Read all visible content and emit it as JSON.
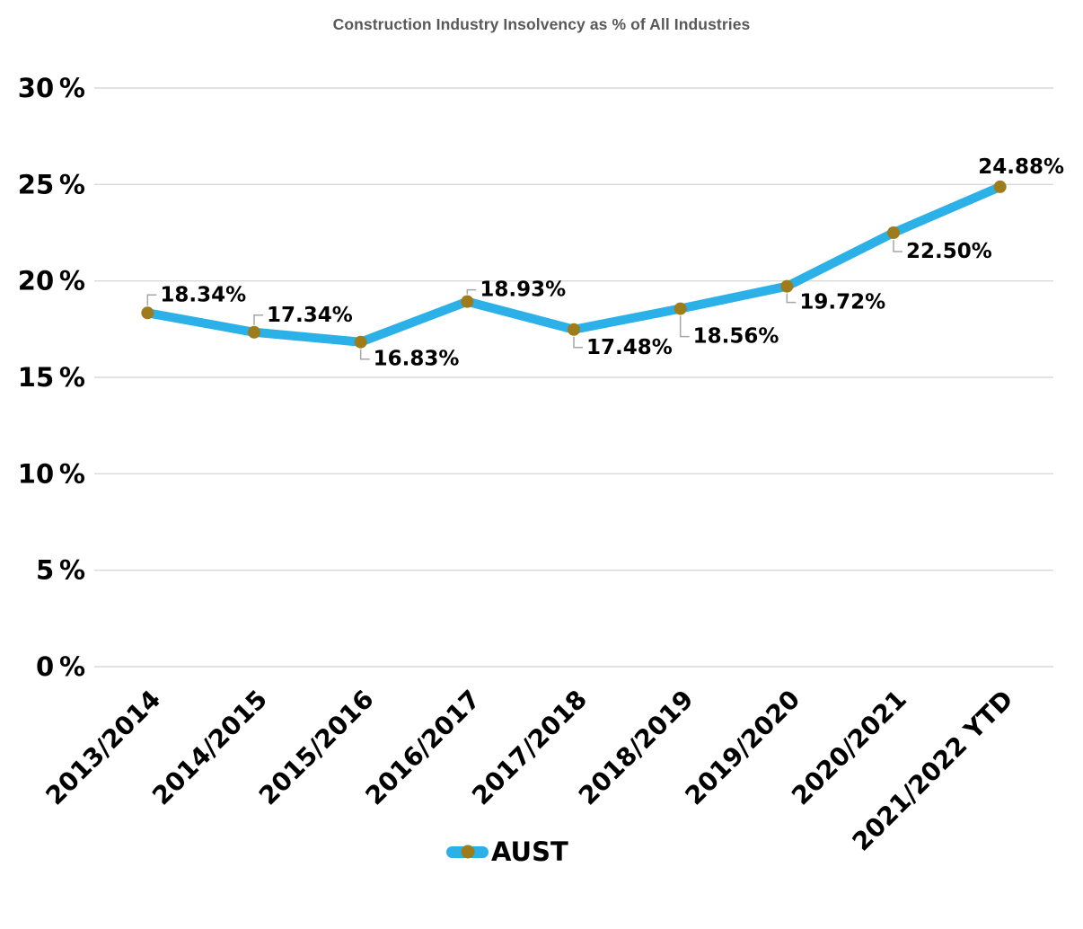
{
  "chart_data": {
    "type": "line",
    "title": "Construction Industry Insolvency as % of All Industries",
    "categories": [
      "2013/2014",
      "2014/2015",
      "2015/2016",
      "2016/2017",
      "2017/2018",
      "2018/2019",
      "2019/2020",
      "2020/2021",
      "2021/2022 YTD"
    ],
    "series": [
      {
        "name": "AUST",
        "values": [
          18.34,
          17.34,
          16.83,
          18.93,
          17.48,
          18.56,
          19.72,
          22.5,
          24.88
        ]
      }
    ],
    "data_labels": [
      "18.34%",
      "17.34%",
      "16.83%",
      "18.93%",
      "17.48%",
      "18.56%",
      "19.72%",
      "22.50%",
      "24.88%"
    ],
    "label_sides": [
      "above",
      "above",
      "below",
      "above",
      "below",
      "below",
      "below",
      "below",
      "above-end"
    ],
    "ylim": [
      0,
      30
    ],
    "y_ticks": [
      {
        "value": 30,
        "label": "30 %"
      },
      {
        "value": 25,
        "label": "25 %"
      },
      {
        "value": 20,
        "label": "20 %"
      },
      {
        "value": 15,
        "label": "15 %"
      },
      {
        "value": 10,
        "label": "10 %"
      },
      {
        "value": 5,
        "label": "5 %"
      },
      {
        "value": 0,
        "label": "0 %"
      }
    ],
    "grid": true,
    "legend_position": "bottom",
    "colors": {
      "line": "#2BB0E8",
      "marker": "#9E7C1C",
      "gridline": "#D9D9D9",
      "leader": "#A6A6A6",
      "title_text": "#595959",
      "label_text": "#000000"
    }
  }
}
